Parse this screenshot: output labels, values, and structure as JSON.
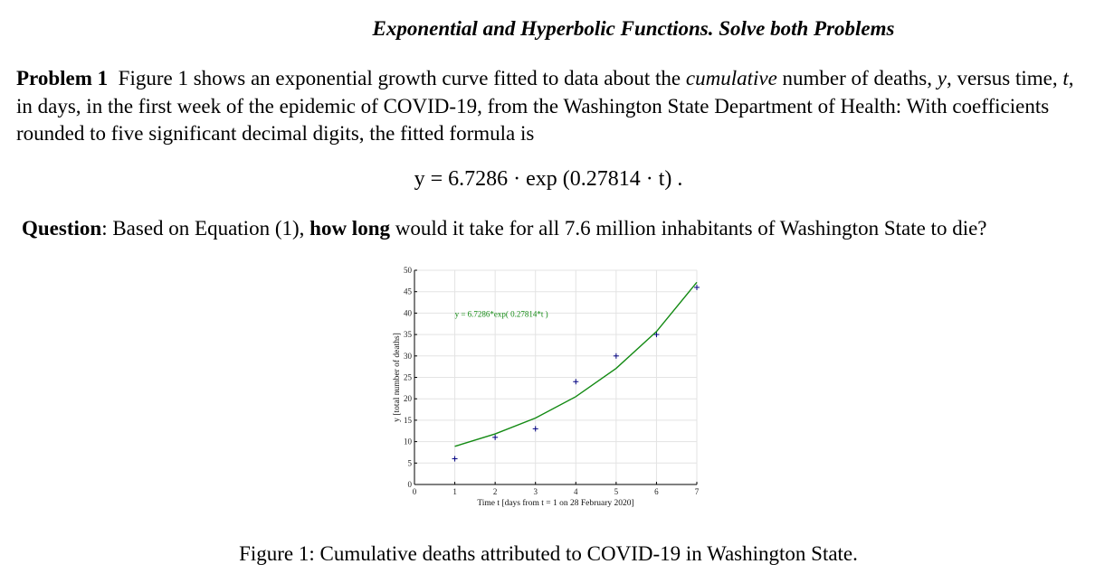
{
  "title": "Exponential and Hyperbolic Functions. Solve both Problems",
  "problem": {
    "label": "Problem 1",
    "text_a": "Figure 1 shows an exponential growth curve fitted to data about the",
    "text_italic": "cumulative",
    "text_b": "number of deaths,",
    "var_y": "y",
    "text_c": ", versus time,",
    "var_t": "t",
    "text_d": ", in days, in the first week of the epidemic of COVID-19, from the Washington State Department of Health: With coefficients rounded to five significant decimal digits, the fitted formula is"
  },
  "equation": "y = 6.7286 · exp (0.27814 · t) .",
  "question": {
    "label": "Question",
    "text_a": ": Based on Equation (1),",
    "bold": "how long",
    "text_b": "would it take for all 7.6 million inhabitants of Washington State to die?"
  },
  "caption": "Figure 1: Cumulative deaths attributed to COVID-19 in Washington State.",
  "chart_data": {
    "type": "scatter",
    "title": "",
    "xlabel": "Time t [days from t = 1 on 28 February 2020]",
    "ylabel": "y [total number of deaths]",
    "xlim": [
      0,
      7
    ],
    "ylim": [
      0,
      50
    ],
    "xticks": [
      0,
      1,
      2,
      3,
      4,
      5,
      6,
      7
    ],
    "yticks": [
      0,
      5,
      10,
      15,
      20,
      25,
      30,
      35,
      40,
      45,
      50
    ],
    "grid": true,
    "annotation": "y = 6.7286*exp( 0.27814*t )",
    "series": [
      {
        "kind": "points",
        "color": "#000080",
        "x": [
          1,
          2,
          3,
          4,
          5,
          6,
          7
        ],
        "y": [
          6,
          11,
          13,
          24,
          30,
          35,
          46
        ]
      },
      {
        "kind": "line",
        "color": "#138a13",
        "x": [
          1,
          2,
          3,
          4,
          5,
          6,
          7
        ],
        "y": [
          8.9,
          11.8,
          15.5,
          20.5,
          27.1,
          35.7,
          47.2
        ]
      }
    ]
  }
}
